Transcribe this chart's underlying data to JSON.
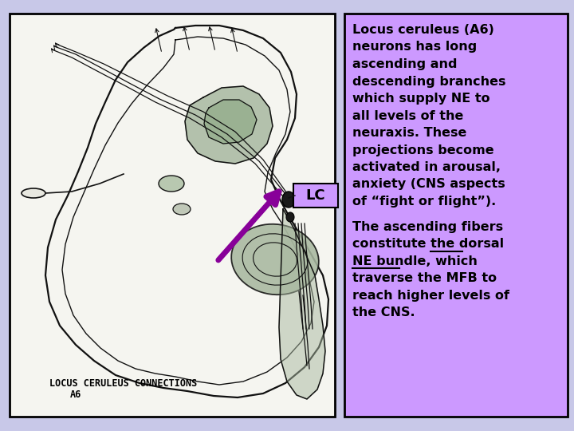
{
  "bg_color": "#c8c8e8",
  "left_bg": "#f0f0ec",
  "right_bg": "#cc99ff",
  "border_color": "#000000",
  "lc_box_bg": "#cc99ff",
  "arrow_color": "#880099",
  "brain_line_color": "#111111",
  "green_fill": "#a8b8a0",
  "text_color": "#000000",
  "para1_lines": [
    "Locus ceruleus (A6)",
    "neurons has long",
    "ascending and",
    "descending branches",
    "which supply NE to",
    "all levels of the",
    "neuraxis. These",
    "projections become",
    "activated in arousal,",
    "anxiety (CNS aspects",
    "of “fight or flight”)."
  ],
  "para2_line1": "The ascending fibers",
  "para2_line2a": "constitute the ",
  "para2_line2b": "dorsal",
  "para2_line3a": "NE",
  "para2_line3b": " bundle",
  "para2_line3c": ", which",
  "para2_line4": "traverse the MFB to",
  "para2_line5": "reach higher levels of",
  "para2_line6": "the CNS.",
  "brain_caption_line1": "LOCUS CERULEUS CONNECTIONS",
  "brain_caption_line2": "A6",
  "lc_label": "LC",
  "font_size": 11.5,
  "lc_font_size": 13
}
